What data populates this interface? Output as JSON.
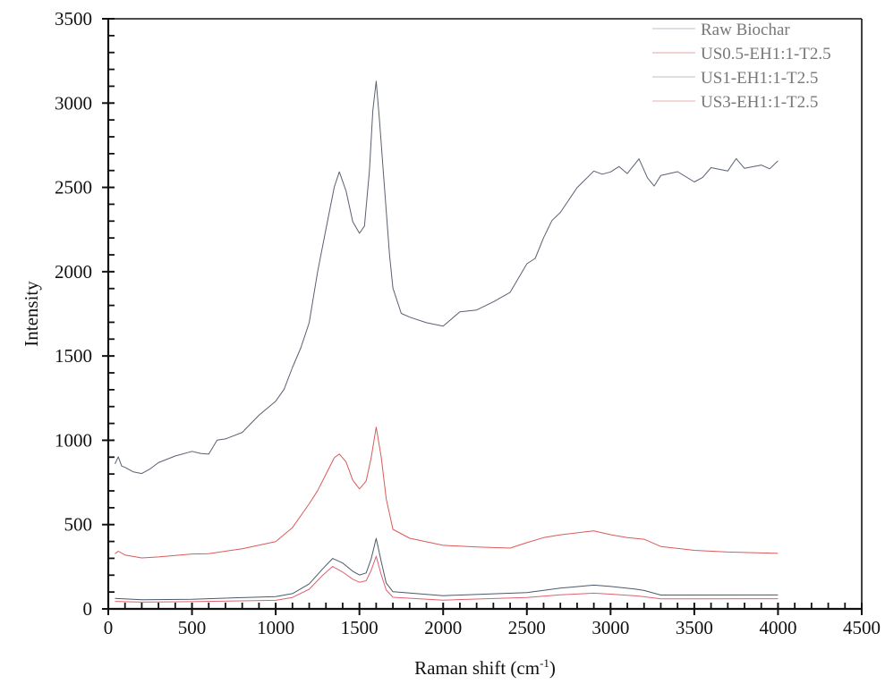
{
  "chart_data": {
    "type": "line",
    "title": "",
    "xlabel": "Raman shift (cm-1)",
    "xlabel_main": "Raman shift (cm",
    "xlabel_sup": "-1",
    "xlabel_close": ")",
    "ylabel": "Intensity",
    "xlim": [
      0,
      4500
    ],
    "ylim": [
      0,
      3500
    ],
    "xticks": [
      0,
      500,
      1000,
      1500,
      2000,
      2500,
      3000,
      3500,
      4000,
      4500
    ],
    "yticks": [
      0,
      500,
      1000,
      1500,
      2000,
      2500,
      3000,
      3500
    ],
    "x_minor_per_major": 5,
    "y_minor_per_major": 5,
    "grid": false,
    "legend_position": "upper right",
    "series": [
      {
        "name": "Raw Biochar",
        "color": "#5a6070",
        "x": [
          40,
          60,
          80,
          100,
          150,
          200,
          250,
          300,
          400,
          500,
          550,
          600,
          650,
          700,
          800,
          900,
          1000,
          1050,
          1100,
          1150,
          1200,
          1250,
          1300,
          1350,
          1380,
          1420,
          1460,
          1500,
          1530,
          1560,
          1580,
          1600,
          1620,
          1650,
          1680,
          1700,
          1750,
          1800,
          1900,
          2000,
          2050,
          2100,
          2200,
          2300,
          2400,
          2500,
          2550,
          2600,
          2650,
          2700,
          2800,
          2900,
          2950,
          3000,
          3050,
          3100,
          3170,
          3220,
          3260,
          3300,
          3400,
          3500,
          3550,
          3600,
          3700,
          3750,
          3800,
          3900,
          3950,
          4000
        ],
        "y": [
          860,
          905,
          850,
          840,
          810,
          800,
          830,
          870,
          910,
          935,
          920,
          915,
          1000,
          1010,
          1050,
          1150,
          1230,
          1300,
          1430,
          1550,
          1700,
          2000,
          2250,
          2500,
          2590,
          2480,
          2300,
          2230,
          2270,
          2600,
          2950,
          3130,
          2900,
          2500,
          2100,
          1900,
          1750,
          1730,
          1700,
          1680,
          1720,
          1760,
          1770,
          1820,
          1880,
          2050,
          2080,
          2200,
          2300,
          2350,
          2500,
          2600,
          2580,
          2590,
          2620,
          2580,
          2670,
          2560,
          2510,
          2570,
          2590,
          2530,
          2560,
          2620,
          2600,
          2670,
          2610,
          2630,
          2610,
          2660
        ]
      },
      {
        "name": "US0.5-EH1:1-T2.5",
        "color": "#d95a5a",
        "x": [
          40,
          60,
          100,
          200,
          300,
          500,
          600,
          800,
          1000,
          1100,
          1200,
          1250,
          1300,
          1350,
          1380,
          1420,
          1460,
          1500,
          1540,
          1570,
          1600,
          1630,
          1660,
          1700,
          1800,
          2000,
          2200,
          2400,
          2500,
          2600,
          2700,
          2850,
          2900,
          3000,
          3100,
          3200,
          3300,
          3500,
          3700,
          4000
        ],
        "y": [
          330,
          345,
          320,
          300,
          305,
          325,
          330,
          360,
          400,
          480,
          620,
          700,
          800,
          900,
          920,
          870,
          760,
          710,
          760,
          900,
          1080,
          900,
          650,
          470,
          420,
          380,
          370,
          360,
          390,
          420,
          440,
          460,
          465,
          440,
          420,
          410,
          370,
          350,
          340,
          330
        ]
      },
      {
        "name": "US1-EH1:1-T2.5",
        "color": "#4a5a6a",
        "x": [
          40,
          200,
          500,
          1000,
          1100,
          1200,
          1280,
          1340,
          1400,
          1460,
          1500,
          1540,
          1570,
          1600,
          1630,
          1660,
          1700,
          2000,
          2500,
          2700,
          2900,
          3000,
          3150,
          3200,
          3300,
          4000
        ],
        "y": [
          65,
          55,
          55,
          70,
          90,
          150,
          240,
          300,
          270,
          220,
          200,
          215,
          300,
          420,
          280,
          150,
          100,
          80,
          100,
          125,
          140,
          130,
          115,
          110,
          85,
          85
        ]
      },
      {
        "name": "US3-EH1:1-T2.5",
        "color": "#e06070",
        "x": [
          40,
          200,
          500,
          1000,
          1100,
          1200,
          1280,
          1340,
          1400,
          1460,
          1500,
          1540,
          1570,
          1600,
          1630,
          1660,
          1700,
          2000,
          2500,
          2700,
          2900,
          3000,
          3150,
          3200,
          3300,
          4000
        ],
        "y": [
          45,
          38,
          40,
          50,
          70,
          120,
          200,
          250,
          215,
          175,
          160,
          170,
          230,
          310,
          200,
          110,
          70,
          55,
          70,
          82,
          90,
          85,
          78,
          75,
          62,
          60
        ]
      }
    ]
  },
  "legend": {
    "items": [
      {
        "label": "Raw Biochar",
        "color": "#c8ccd4"
      },
      {
        "label": "US0.5-EH1:1-T2.5",
        "color": "#e8b4b4"
      },
      {
        "label": "US1-EH1:1-T2.5",
        "color": "#c8ccd4"
      },
      {
        "label": "US3-EH1:1-T2.5",
        "color": "#ecc0c4"
      }
    ]
  }
}
